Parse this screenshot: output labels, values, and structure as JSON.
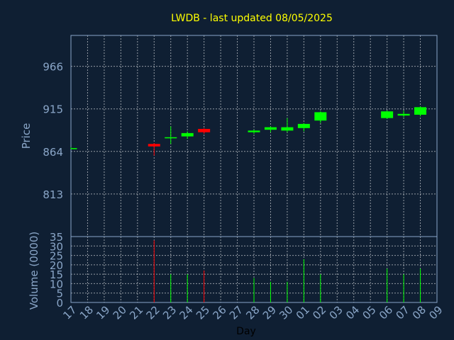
{
  "chart_data": {
    "type": "candlestick",
    "title": "LWDB - last updated 08/05/2025",
    "colors": {
      "background": "#0f1f33",
      "frame": "#8aa6c8",
      "grid": "#ffffff",
      "up": "#00ff00",
      "down": "#ff0000",
      "title": "#ffff00",
      "text": "#8aa6c8",
      "xlabel": "#000000"
    },
    "price_panel": {
      "ylabel": "Price",
      "yticks": [
        813,
        864,
        915,
        966
      ],
      "ylim": [
        762,
        1003
      ]
    },
    "volume_panel": {
      "ylabel": "Volume (0000)",
      "yticks": [
        0,
        5,
        10,
        15,
        20,
        25,
        30,
        35
      ],
      "ylim": [
        0,
        35
      ]
    },
    "xlabel": "Day",
    "x_ticks": [
      "17",
      "18",
      "19",
      "20",
      "21",
      "22",
      "23",
      "24",
      "25",
      "26",
      "27",
      "28",
      "29",
      "30",
      "01",
      "02",
      "03",
      "04",
      "05",
      "06",
      "07",
      "08",
      "09"
    ],
    "candles": [
      {
        "day": "17",
        "open": 868,
        "high": 869,
        "low": 867,
        "close": 868,
        "volume": 0
      },
      {
        "day": "22",
        "open": 873,
        "high": 874,
        "low": 859,
        "close": 870,
        "volume": 33
      },
      {
        "day": "23",
        "open": 880,
        "high": 894,
        "low": 873,
        "close": 881,
        "volume": 15
      },
      {
        "day": "24",
        "open": 882,
        "high": 888,
        "low": 879,
        "close": 886,
        "volume": 15
      },
      {
        "day": "25",
        "open": 891,
        "high": 892,
        "low": 885,
        "close": 887,
        "volume": 17
      },
      {
        "day": "28",
        "open": 887,
        "high": 890,
        "low": 885,
        "close": 889,
        "volume": 13
      },
      {
        "day": "29",
        "open": 890,
        "high": 894,
        "low": 887,
        "close": 893,
        "volume": 11
      },
      {
        "day": "30",
        "open": 889,
        "high": 904,
        "low": 887,
        "close": 893,
        "volume": 11
      },
      {
        "day": "01",
        "open": 892,
        "high": 898,
        "low": 888,
        "close": 897,
        "volume": 23
      },
      {
        "day": "02",
        "open": 901,
        "high": 912,
        "low": 898,
        "close": 911,
        "volume": 15
      },
      {
        "day": "06",
        "open": 904,
        "high": 913,
        "low": 903,
        "close": 912,
        "volume": 18
      },
      {
        "day": "07",
        "open": 907,
        "high": 913,
        "low": 905,
        "close": 909,
        "volume": 15
      },
      {
        "day": "08",
        "open": 908,
        "high": 918,
        "low": 906,
        "close": 917,
        "volume": 18
      }
    ],
    "grid": true
  }
}
